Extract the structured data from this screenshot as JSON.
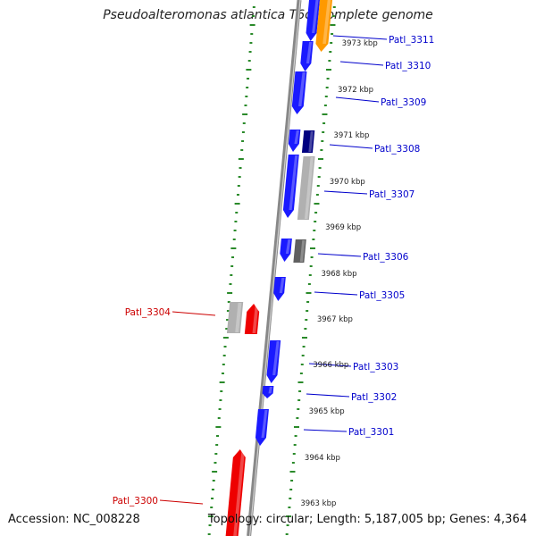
{
  "title": "Pseudoalteromonas atlantica T6c, complete genome",
  "footer": {
    "accession": "Accession: NC_008228",
    "summary": "Topology: circular; Length: 5,187,005 bp; Genes: 4,364"
  },
  "colors": {
    "forward_gene": "#ee0000",
    "reverse_gene": "#1a1aff",
    "orange_gene": "#ff9900",
    "navy_gene": "#000080",
    "gray_gene": "#b0b0b0",
    "dark_gray_gene": "#606060",
    "backbone": "#888888",
    "tick": "#2a8a2a",
    "forward_label": "#cc0000",
    "reverse_label": "#0000cc"
  },
  "scale": {
    "unit": "kbp",
    "ticks": [
      "3973 kbp",
      "3972 kbp",
      "3971 kbp",
      "3970 kbp",
      "3969 kbp",
      "3968 kbp",
      "3967 kbp",
      "3966 kbp",
      "3965 kbp",
      "3964 kbp",
      "3963 kbp"
    ]
  },
  "genes": [
    {
      "label": "Patl_3311",
      "strand": "reverse"
    },
    {
      "label": "Patl_3310",
      "strand": "reverse"
    },
    {
      "label": "Patl_3309",
      "strand": "reverse"
    },
    {
      "label": "Patl_3308",
      "strand": "reverse"
    },
    {
      "label": "Patl_3307",
      "strand": "reverse"
    },
    {
      "label": "Patl_3306",
      "strand": "reverse"
    },
    {
      "label": "Patl_3305",
      "strand": "reverse"
    },
    {
      "label": "Patl_3304",
      "strand": "forward"
    },
    {
      "label": "Patl_3303",
      "strand": "reverse"
    },
    {
      "label": "Patl_3302",
      "strand": "reverse"
    },
    {
      "label": "Patl_3301",
      "strand": "reverse"
    },
    {
      "label": "Patl_3300",
      "strand": "forward"
    }
  ]
}
